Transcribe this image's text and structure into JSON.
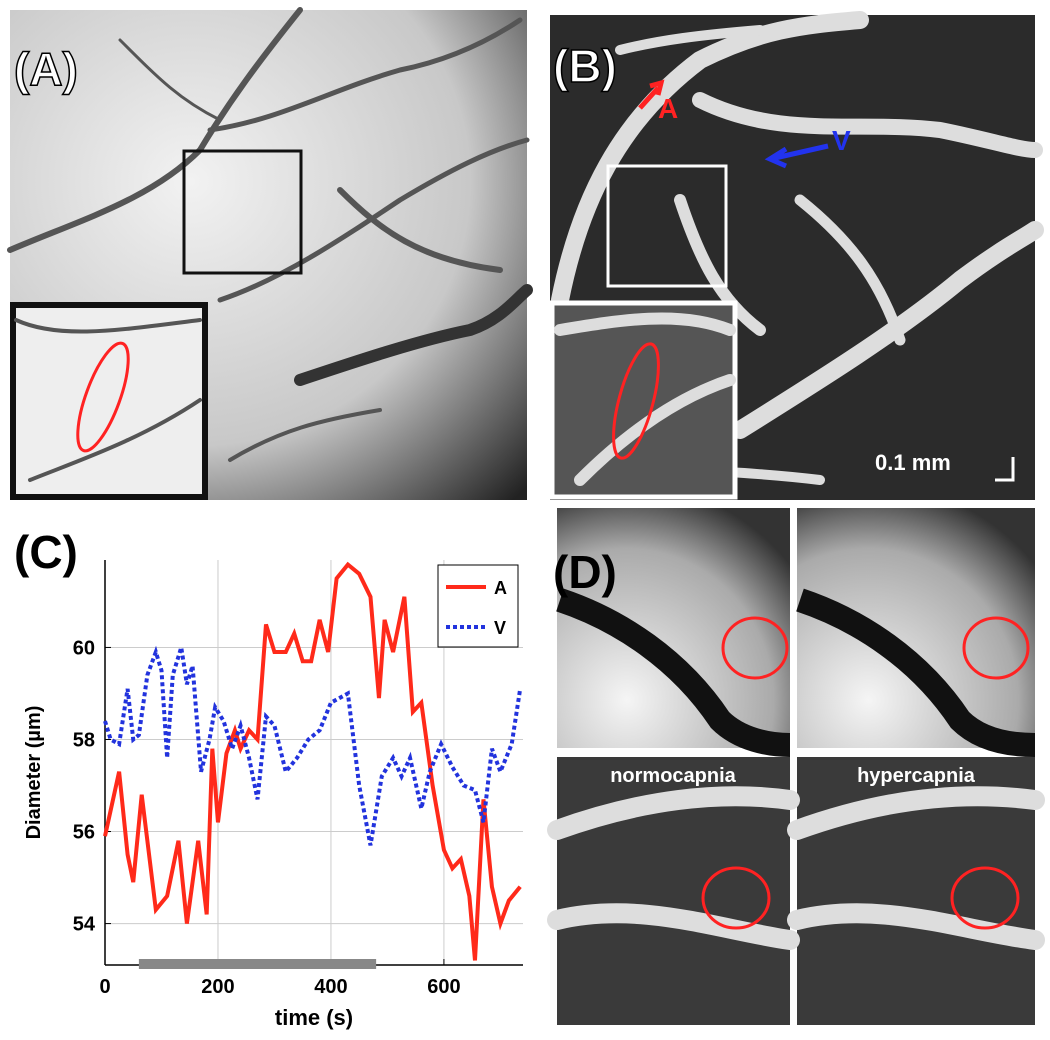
{
  "panels": {
    "a_label": "(A)",
    "b_label": "(B)",
    "c_label": "(C)",
    "d_label": "(D)",
    "artery_label": "A",
    "vein_label": "V",
    "scale_bar": "0.1 mm",
    "normo": "normocapnia",
    "hyper": "hypercapnia"
  },
  "chart_data": {
    "type": "line",
    "xlabel": "time (s)",
    "ylabel": "Diameter (µm)",
    "xlim": [
      0,
      740
    ],
    "ylim": [
      53.1,
      61.9
    ],
    "xticks": [
      0,
      200,
      400,
      600
    ],
    "yticks": [
      54,
      56,
      58,
      60
    ],
    "grid": true,
    "legend": "upper right",
    "shaded_interval": [
      60,
      480
    ],
    "series": [
      {
        "name": "A",
        "color": "#ff2a1a",
        "line_style": "solid",
        "x": [
          0,
          25,
          40,
          50,
          65,
          90,
          110,
          130,
          145,
          165,
          180,
          190,
          200,
          215,
          230,
          240,
          255,
          270,
          285,
          300,
          320,
          335,
          350,
          365,
          380,
          395,
          410,
          430,
          450,
          470,
          485,
          495,
          510,
          530,
          545,
          560,
          580,
          600,
          615,
          630,
          645,
          655,
          670,
          685,
          700,
          715,
          735
        ],
        "values": [
          55.9,
          57.3,
          55.5,
          54.9,
          56.8,
          54.3,
          54.6,
          55.8,
          54.0,
          55.8,
          54.2,
          57.8,
          56.2,
          57.7,
          58.2,
          57.8,
          58.2,
          58.0,
          60.5,
          59.9,
          59.9,
          60.3,
          59.7,
          59.7,
          60.6,
          59.9,
          61.5,
          61.8,
          61.6,
          61.1,
          58.9,
          60.6,
          59.9,
          61.1,
          58.6,
          58.8,
          57.0,
          55.6,
          55.2,
          55.4,
          54.6,
          53.2,
          56.7,
          54.8,
          54.0,
          54.5,
          54.8
        ]
      },
      {
        "name": "V",
        "color": "#2233dd",
        "line_style": "dotted",
        "x": [
          0,
          10,
          25,
          40,
          50,
          60,
          75,
          90,
          100,
          110,
          120,
          135,
          145,
          155,
          170,
          185,
          195,
          210,
          225,
          240,
          255,
          270,
          285,
          300,
          320,
          340,
          360,
          380,
          400,
          430,
          450,
          470,
          490,
          510,
          525,
          540,
          560,
          575,
          595,
          615,
          635,
          655,
          670,
          685,
          700,
          720,
          735
        ],
        "values": [
          58.4,
          58.0,
          57.9,
          59.1,
          58.0,
          58.1,
          59.4,
          59.9,
          59.5,
          57.6,
          59.4,
          60.0,
          59.2,
          59.6,
          57.3,
          58.0,
          58.7,
          58.4,
          57.8,
          58.3,
          57.6,
          56.7,
          58.5,
          58.3,
          57.3,
          57.6,
          58.0,
          58.2,
          58.8,
          59.0,
          57.0,
          55.7,
          57.2,
          57.6,
          57.2,
          57.6,
          56.5,
          57.3,
          57.9,
          57.4,
          57.0,
          56.9,
          56.2,
          57.8,
          57.3,
          57.9,
          59.1
        ]
      }
    ]
  }
}
